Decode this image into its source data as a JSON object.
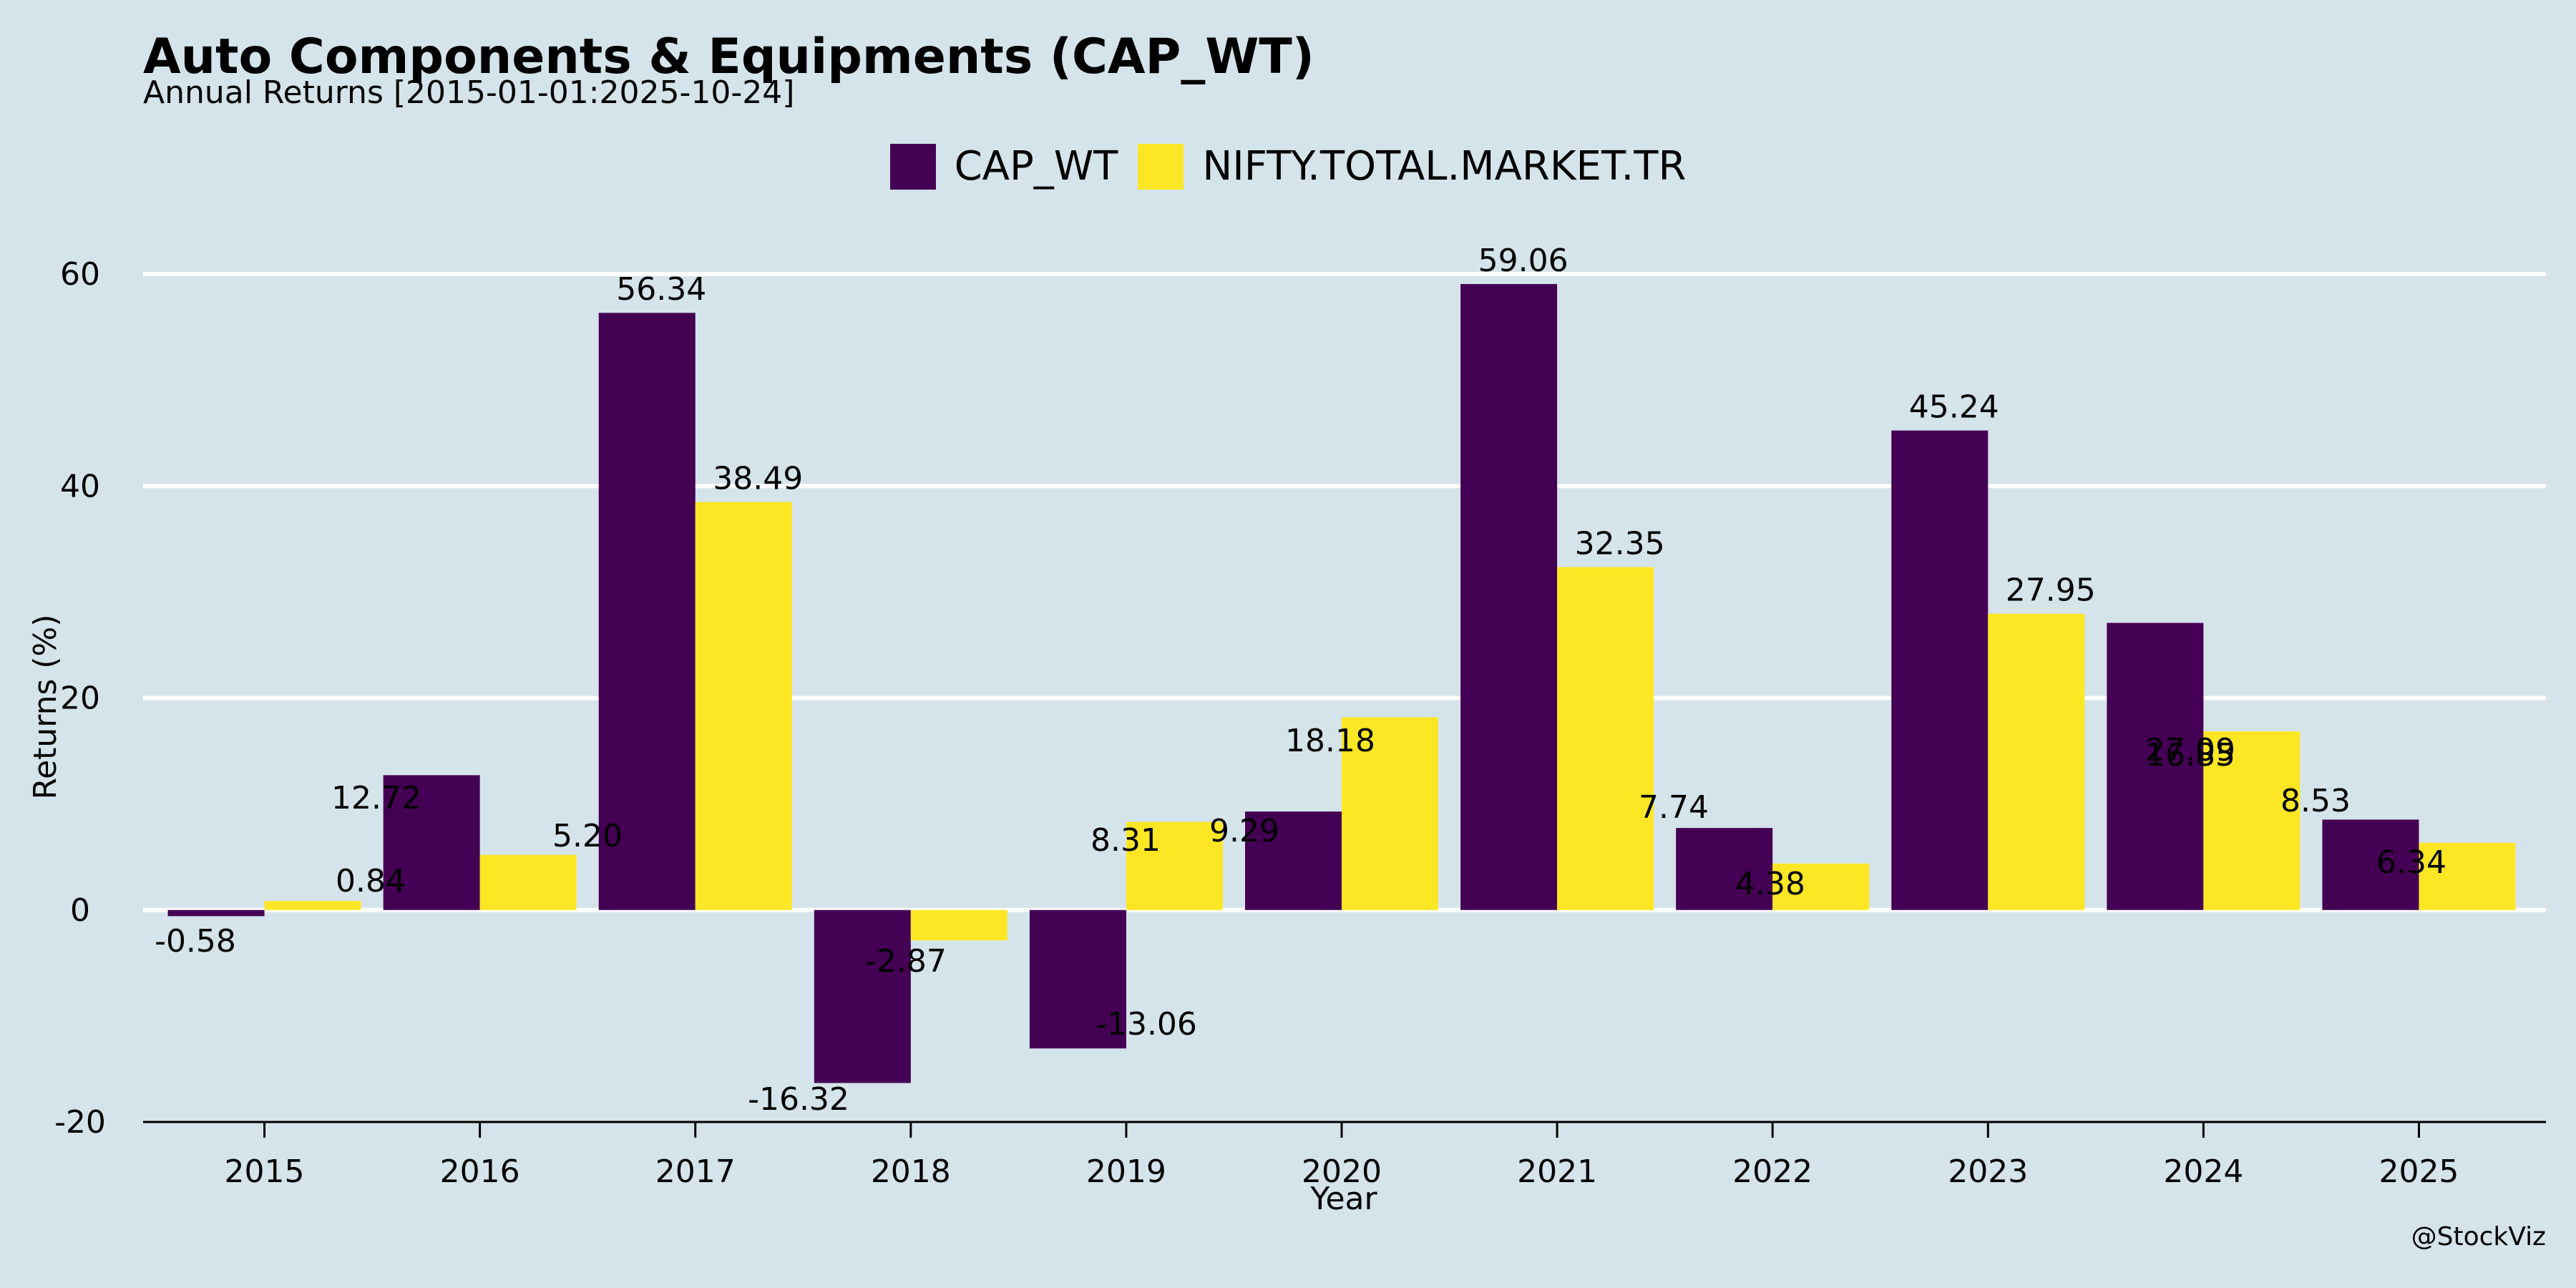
{
  "chart_data": {
    "type": "bar",
    "title": "Auto Components & Equipments (CAP_WT)",
    "subtitle": "Annual Returns [2015-01-01:2025-10-24]",
    "xlabel": "Year",
    "ylabel": "Returns (%)",
    "ylim": [
      -20,
      60
    ],
    "yticks": [
      -20,
      0,
      20,
      40,
      60
    ],
    "grid": "horizontal",
    "legend_position": "top-center",
    "categories": [
      "2015",
      "2016",
      "2017",
      "2018",
      "2019",
      "2020",
      "2021",
      "2022",
      "2023",
      "2024",
      "2025"
    ],
    "series": [
      {
        "name": "CAP_WT",
        "color": "#440154",
        "values": [
          -0.58,
          12.72,
          56.34,
          -16.32,
          -13.06,
          9.29,
          59.06,
          7.74,
          45.24,
          27.09,
          8.53
        ],
        "labels": [
          "-0.58",
          "12.72",
          "56.34",
          "-16.32",
          "-13.06",
          "9.29",
          "59.06",
          "7.74",
          "45.24",
          "27.09",
          "8.53"
        ]
      },
      {
        "name": "NIFTY.TOTAL.MARKET.TR",
        "color": "#fde725",
        "values": [
          0.84,
          5.2,
          38.49,
          -2.87,
          8.31,
          18.18,
          32.35,
          4.38,
          27.95,
          16.85,
          6.34
        ],
        "labels": [
          "0.84",
          "5.20",
          "38.49",
          "-2.87",
          "8.31",
          "18.18",
          "32.35",
          "4.38",
          "27.95",
          "16.85",
          "6.34"
        ]
      }
    ]
  },
  "watermark": "@StockViz"
}
